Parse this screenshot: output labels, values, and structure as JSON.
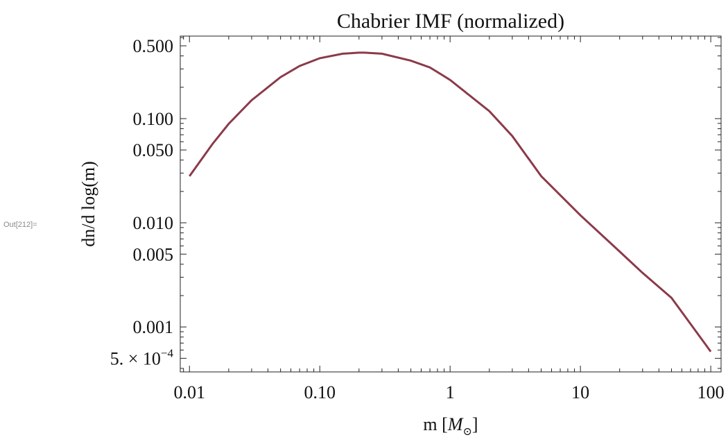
{
  "cell_label": "Out[212]=",
  "chart_data": {
    "type": "line",
    "title": "Chabrier IMF (normalized)",
    "xlabel": "m [M⊙]",
    "xlabel_main": "m [",
    "xlabel_symbol": "M",
    "xlabel_sub": "⊙",
    "xlabel_close": "]",
    "ylabel": "dn/d log(m)",
    "xscale": "log",
    "yscale": "log",
    "xlim": [
      0.0085,
      120
    ],
    "ylim": [
      0.00037,
      0.62
    ],
    "xticks": [
      {
        "value": 0.01,
        "label": "0.01"
      },
      {
        "value": 0.1,
        "label": "0.10"
      },
      {
        "value": 1,
        "label": "1"
      },
      {
        "value": 10,
        "label": "10"
      },
      {
        "value": 100,
        "label": "100"
      }
    ],
    "yticks": [
      {
        "value": 0.5,
        "label": "0.500"
      },
      {
        "value": 0.1,
        "label": "0.100"
      },
      {
        "value": 0.05,
        "label": "0.050"
      },
      {
        "value": 0.01,
        "label": "0.010"
      },
      {
        "value": 0.005,
        "label": "0.005"
      },
      {
        "value": 0.001,
        "label": "0.001"
      },
      {
        "value": 0.0005,
        "label": "5. × 10",
        "exp": "−4"
      }
    ],
    "grid": false,
    "series": [
      {
        "color": "#8b3a4a",
        "x": [
          0.01,
          0.015,
          0.02,
          0.03,
          0.05,
          0.07,
          0.1,
          0.15,
          0.2,
          0.22,
          0.3,
          0.5,
          0.7,
          1,
          2,
          3,
          5,
          10,
          20,
          30,
          50,
          100
        ],
        "y": [
          0.028,
          0.057,
          0.089,
          0.15,
          0.25,
          0.32,
          0.38,
          0.42,
          0.43,
          0.43,
          0.42,
          0.36,
          0.31,
          0.235,
          0.118,
          0.068,
          0.028,
          0.0118,
          0.0053,
          0.0033,
          0.0019,
          0.00058
        ]
      }
    ]
  }
}
